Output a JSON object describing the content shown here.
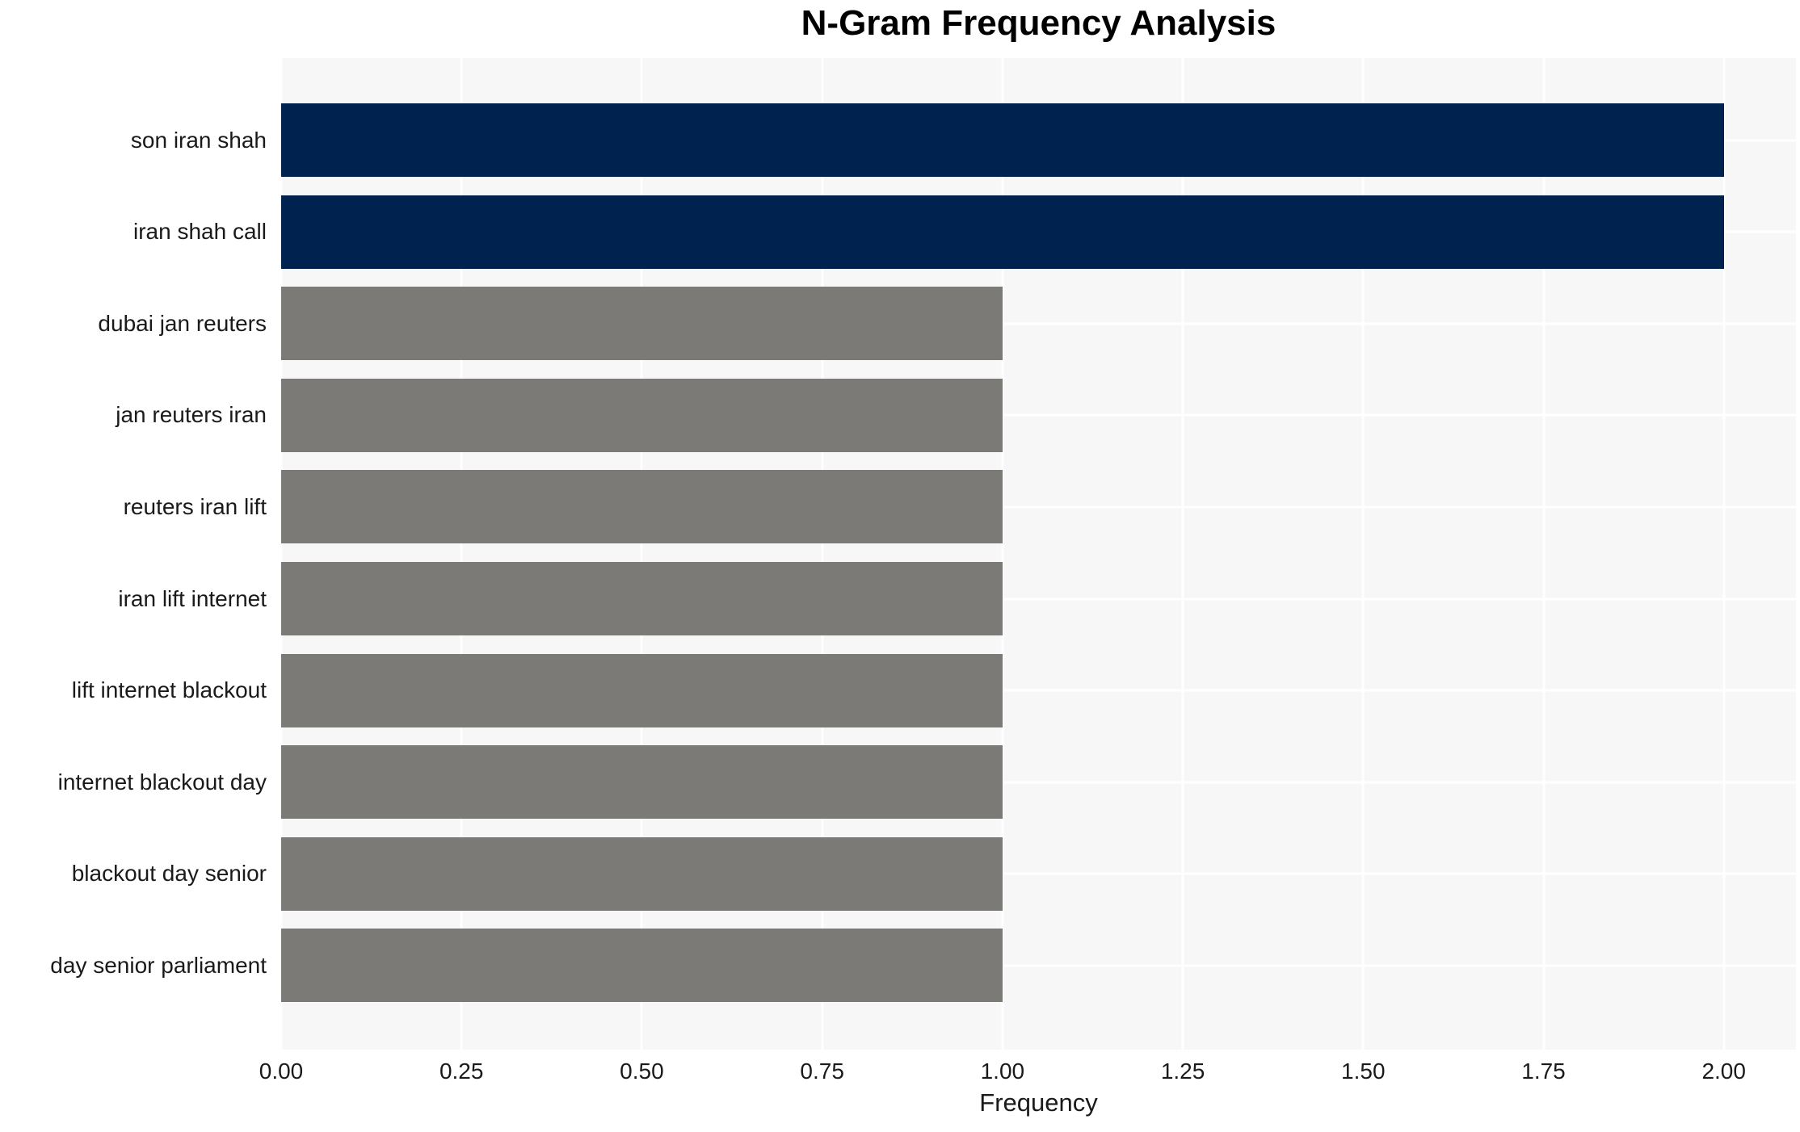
{
  "chart_data": {
    "type": "bar",
    "orientation": "horizontal",
    "title": "N-Gram Frequency Analysis",
    "xlabel": "Frequency",
    "ylabel": "",
    "categories": [
      "son iran shah",
      "iran shah call",
      "dubai jan reuters",
      "jan reuters iran",
      "reuters iran lift",
      "iran lift internet",
      "lift internet blackout",
      "internet blackout day",
      "blackout day senior",
      "day senior parliament"
    ],
    "values": [
      2,
      2,
      1,
      1,
      1,
      1,
      1,
      1,
      1,
      1
    ],
    "bar_colors": [
      "#00224e",
      "#00224e",
      "#7b7a76",
      "#7b7a76",
      "#7b7a76",
      "#7b7a76",
      "#7b7a76",
      "#7b7a76",
      "#7b7a76",
      "#7b7a76"
    ],
    "xlim": [
      0,
      2.1
    ],
    "xtick_values": [
      0,
      0.25,
      0.5,
      0.75,
      1.0,
      1.25,
      1.5,
      1.75,
      2.0
    ],
    "xtick_labels": [
      "0.00",
      "0.25",
      "0.50",
      "0.75",
      "1.00",
      "1.25",
      "1.50",
      "1.75",
      "2.00"
    ],
    "grid": "white-grid-both-axes",
    "legend": "none",
    "colors": {
      "plot_background": "#f7f7f7",
      "page_background": "#ffffff",
      "gridline": "#ffffff",
      "text": "#1a1a1a",
      "title_text": "#000000",
      "bar_high": "#00224e",
      "bar_low": "#7b7a76"
    }
  }
}
